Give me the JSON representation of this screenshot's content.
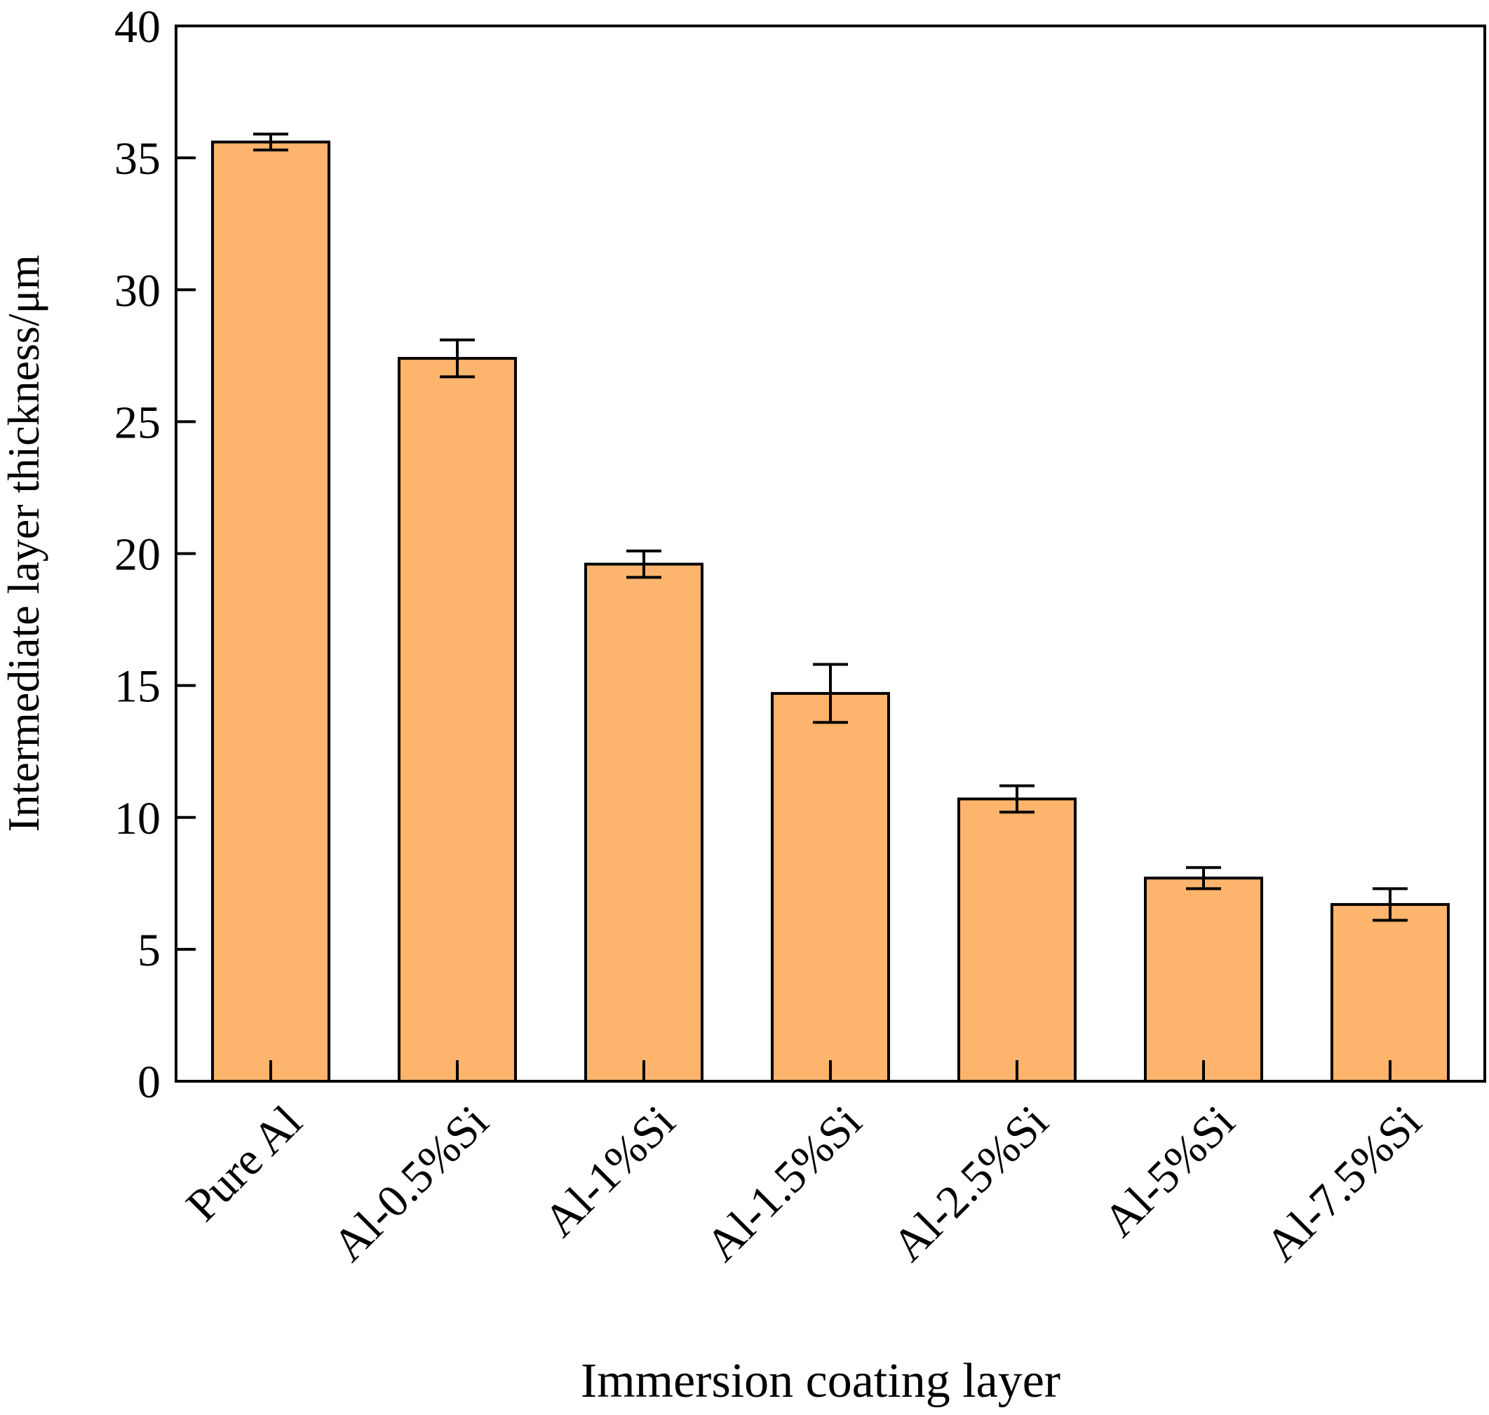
{
  "chart_data": {
    "type": "bar",
    "title": "",
    "xlabel": "Immersion coating layer",
    "ylabel": "Intermediate layer thickness/μm",
    "categories": [
      "Pure Al",
      "Al-0.5%Si",
      "Al-1%Si",
      "Al-1.5%Si",
      "Al-2.5%Si",
      "Al-5%Si",
      "Al-7.5%Si"
    ],
    "values": [
      35.6,
      27.4,
      19.6,
      14.7,
      10.7,
      7.7,
      6.7
    ],
    "errors": [
      0.3,
      0.7,
      0.5,
      1.1,
      0.5,
      0.4,
      0.6
    ],
    "ylim": [
      0,
      40
    ],
    "yticks": [
      0,
      5,
      10,
      15,
      20,
      25,
      30,
      35,
      40
    ],
    "grid": false,
    "colors": {
      "bar_fill": "#FDB46C",
      "bar_stroke": "#000000"
    }
  }
}
